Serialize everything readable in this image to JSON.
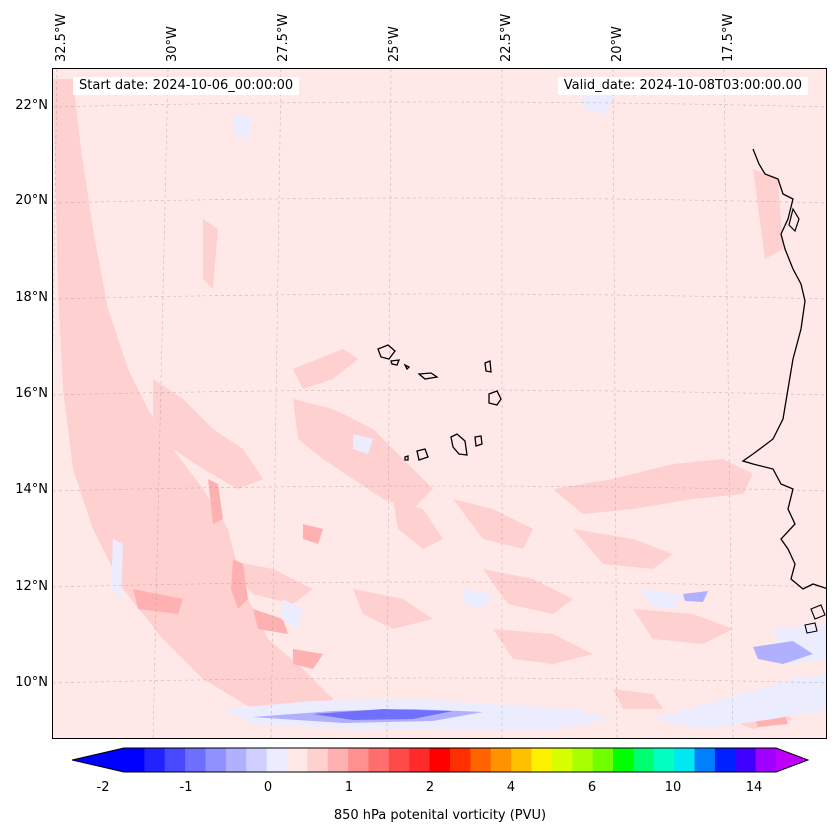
{
  "map": {
    "start_date": "Start date: 2024-10-06_00:00:00",
    "valid_date": "Valid_date: 2024-10-08T03:00:00.00",
    "lon_labels": [
      "32.5°W",
      "30°W",
      "27.5°W",
      "25°W",
      "22.5°W",
      "20°W",
      "17.5°W"
    ],
    "lat_labels": [
      "22°N",
      "20°N",
      "18°N",
      "16°N",
      "14°N",
      "12°N",
      "10°N"
    ]
  },
  "colorbar": {
    "label": "850 hPa potenital vorticity (PVU)",
    "ticks": [
      "-2",
      "-1",
      "0",
      "1",
      "2",
      "4",
      "6",
      "10",
      "14"
    ],
    "colors": [
      "#0000ff",
      "#2222ff",
      "#4848ff",
      "#6e6eff",
      "#9090ff",
      "#b0b0ff",
      "#d0d0ff",
      "#ececff",
      "#ffe8e8",
      "#ffd0d0",
      "#ffb0b0",
      "#ff9090",
      "#ff6e6e",
      "#ff4a4a",
      "#ff2a2a",
      "#ff0000",
      "#ff3000",
      "#ff6400",
      "#ff9400",
      "#ffc000",
      "#fff000",
      "#d8ff00",
      "#a8ff00",
      "#70ff00",
      "#00ff00",
      "#00ff70",
      "#00ffc0",
      "#00e8f0",
      "#0080ff",
      "#0020ff",
      "#4000ff",
      "#a000ff"
    ],
    "under_color": "#0000ff",
    "over_color": "#c000ff"
  }
}
